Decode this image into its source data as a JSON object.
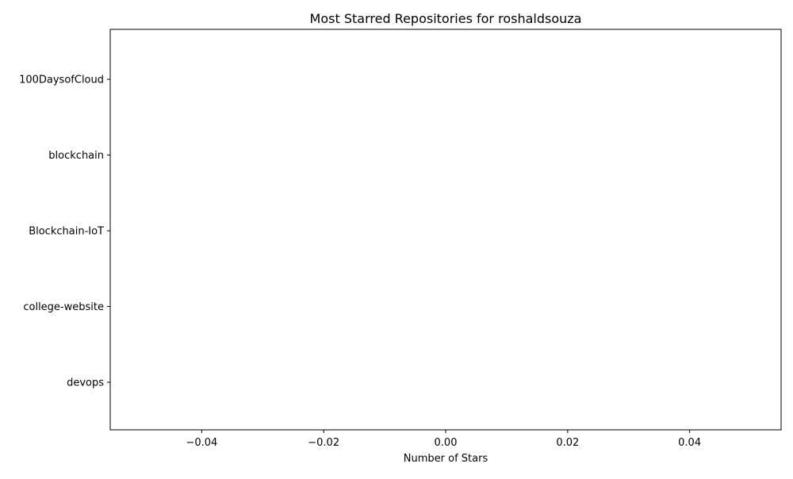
{
  "chart_data": {
    "type": "bar",
    "orientation": "horizontal",
    "title": "Most Starred Repositories for roshaldsouza",
    "xlabel": "Number of Stars",
    "ylabel": "",
    "categories": [
      "100DaysofCloud",
      "blockchain",
      "Blockchain-IoT",
      "college-website",
      "devops"
    ],
    "values": [
      0,
      0,
      0,
      0,
      0
    ],
    "xlim": [
      -0.055,
      0.055
    ],
    "xticks": [
      -0.04,
      -0.02,
      0.0,
      0.02,
      0.04
    ],
    "xtick_labels": [
      "−0.04",
      "−0.02",
      "0.00",
      "0.02",
      "0.04"
    ],
    "grid": false,
    "legend": "none",
    "bar_color": "#1f77b4"
  }
}
